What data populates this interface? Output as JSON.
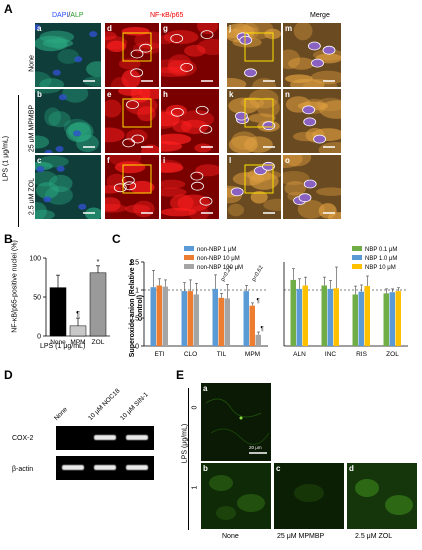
{
  "panel_A": {
    "label": "A",
    "col_headers": {
      "dapi": "DAPI",
      "sep": "/",
      "alp": "ALP",
      "nfkb": "NF-κB/p65",
      "merge": "Merge"
    },
    "row_labels": [
      "None",
      "25 μM MPMBP",
      "2.5 μM ZOL"
    ],
    "group_label": "LPS (1 μg/mL)",
    "tile_letters": [
      "a",
      "b",
      "c",
      "d",
      "e",
      "f",
      "g",
      "h",
      "i",
      "j",
      "k",
      "l",
      "m",
      "n",
      "o"
    ]
  },
  "panel_B": {
    "label": "B",
    "ylabel": "NF-κB/p65-positive nuclei (%)",
    "xlabel": "LPS (1 μg/mL)",
    "sig_marks": [
      "¶",
      "*"
    ]
  },
  "panel_C": {
    "label": "C",
    "ylabel": "Superoxide anion (Relative to control)",
    "pvals": [
      "p=0.21",
      "p=0.62"
    ],
    "sig_mark": "¶"
  },
  "panel_D": {
    "label": "D",
    "lanes": [
      "None",
      "10 μM NOC18",
      "10 μM SIN-1"
    ],
    "rows": [
      "COX-2",
      "β-actin"
    ]
  },
  "panel_E": {
    "label": "E",
    "ylabel": "LPS (μg/mL)",
    "row_values": [
      "0",
      "1"
    ],
    "tile_letters": [
      "a",
      "b",
      "c",
      "d"
    ],
    "scalebar": "20 μm",
    "col_labels": [
      "None",
      "25 μM MPMBP",
      "2.5 μM ZOL"
    ]
  },
  "chart_data": [
    {
      "type": "bar",
      "panel": "B",
      "categories": [
        "None",
        "MPM",
        "ZOL"
      ],
      "values": [
        62,
        13,
        81
      ],
      "errors": [
        16,
        10,
        9
      ],
      "ylim": [
        0,
        100
      ],
      "yticks": [
        0,
        50,
        100
      ],
      "colors": [
        "#000000",
        "#c8c8c8",
        "#9a9a9a"
      ]
    },
    {
      "type": "bar",
      "panel": "C-left",
      "categories": [
        "ETI",
        "CLO",
        "TIL",
        "MPM"
      ],
      "series": [
        {
          "name": "non-NBP  1 μM",
          "color": "#5b9bd5",
          "values": [
            1.05,
            0.98,
            1.02,
            0.98
          ],
          "errors": [
            0.3,
            0.15,
            0.25,
            0.1
          ]
        },
        {
          "name": "non-NBP  10 μM",
          "color": "#ed7d31",
          "values": [
            1.08,
            0.98,
            0.86,
            0.72
          ],
          "errors": [
            0.12,
            0.2,
            0.08,
            0.05
          ]
        },
        {
          "name": "non-NBP  100 μM",
          "color": "#a5a5a5",
          "values": [
            1.06,
            0.92,
            0.85,
            0.2
          ],
          "errors": [
            0.12,
            0.2,
            0.25,
            0.05
          ]
        }
      ],
      "ylim": [
        0,
        1.5
      ],
      "yticks": [
        0,
        0.5,
        1,
        1.5
      ],
      "reference_line": 1
    },
    {
      "type": "bar",
      "panel": "C-right",
      "categories": [
        "ALN",
        "INC",
        "RIS",
        "ZOL"
      ],
      "series": [
        {
          "name": "NBP  0.1 μM",
          "color": "#70ad47",
          "values": [
            1.18,
            1.08,
            0.92,
            0.94
          ],
          "errors": [
            0.2,
            0.15,
            0.15,
            0.08
          ]
        },
        {
          "name": "NBP  1.0 μM",
          "color": "#5b9bd5",
          "values": [
            1.02,
            1.02,
            0.97,
            0.96
          ],
          "errors": [
            0.18,
            0.15,
            0.12,
            0.06
          ]
        },
        {
          "name": "NBP  10  μM",
          "color": "#ffc000",
          "values": [
            1.08,
            1.03,
            1.07,
            0.98
          ],
          "errors": [
            0.15,
            0.38,
            0.18,
            0.06
          ]
        }
      ],
      "ylim": [
        0,
        1.5
      ],
      "reference_line": 1
    }
  ]
}
